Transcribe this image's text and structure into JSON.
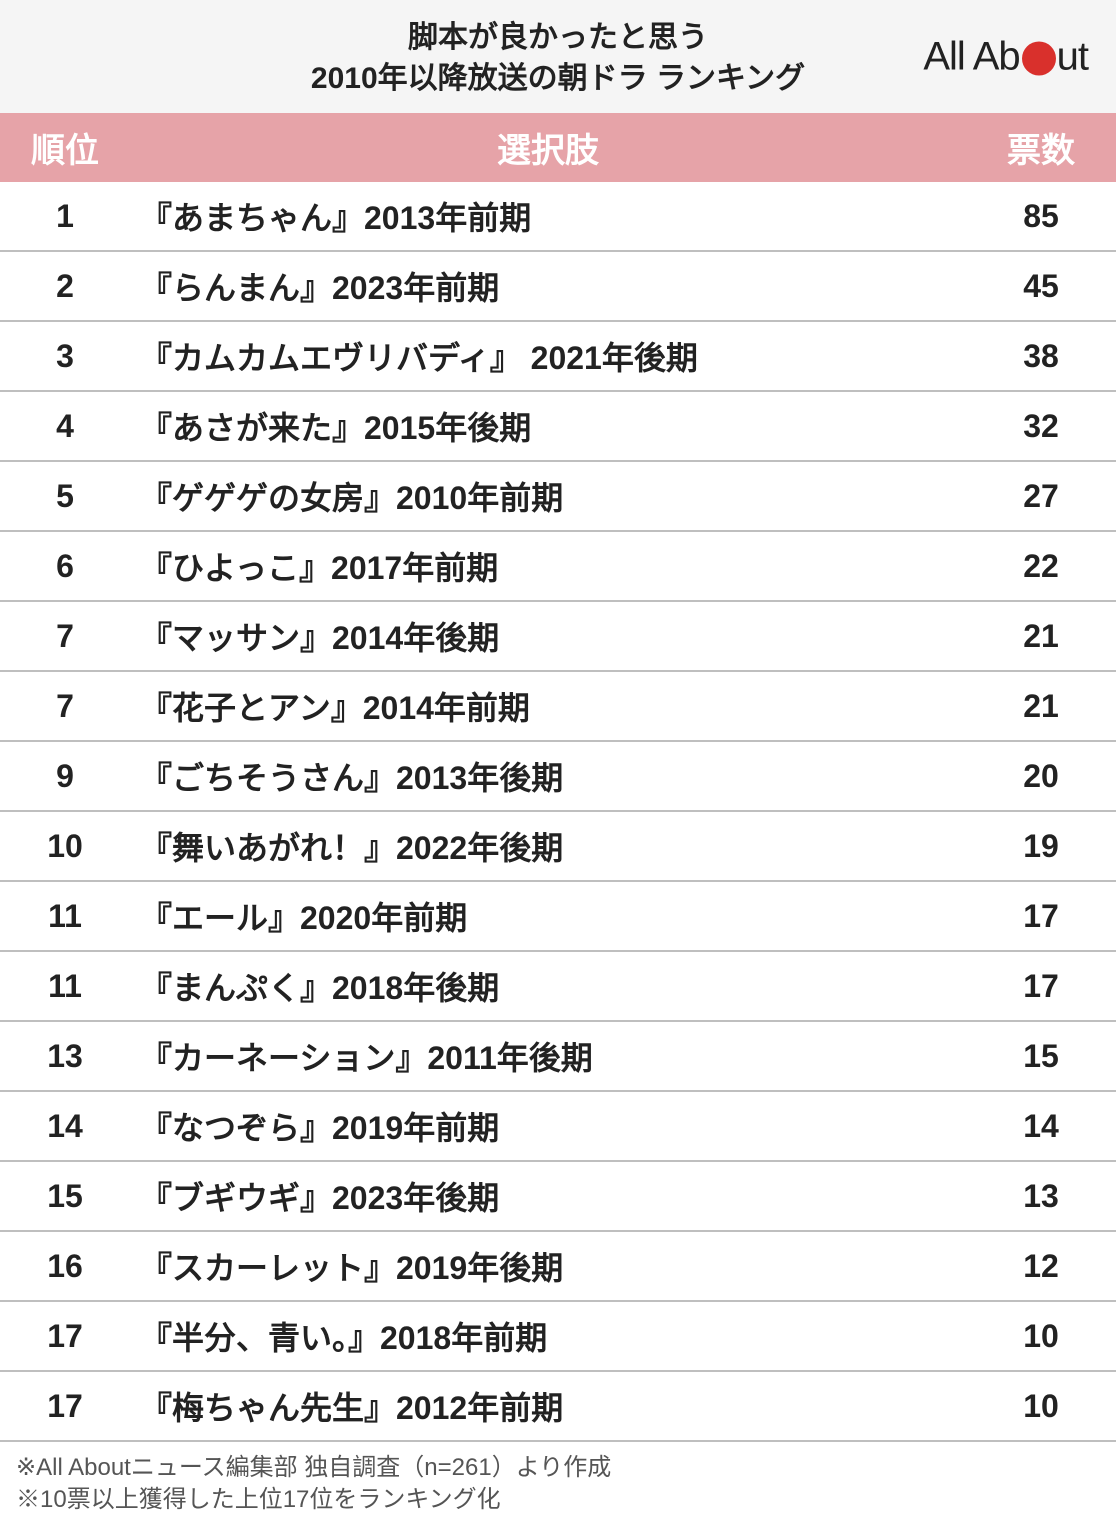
{
  "colors": {
    "header_bg": "#f5f5f5",
    "col_header_bg": "#e6a3a8",
    "col_header_text": "#ffffff",
    "row_border": "#bfbfbf",
    "text": "#222222",
    "footnote_text": "#555555",
    "logo_dot": "#d9302c",
    "page_bg": "#ffffff"
  },
  "logo": {
    "part1": "All Ab",
    "part2": "ut"
  },
  "title": {
    "line1": "脚本が良かったと思う",
    "line2": "2010年以降放送の朝ドラ ランキング"
  },
  "columns": {
    "rank": "順位",
    "choice": "選択肢",
    "votes": "票数"
  },
  "rows": [
    {
      "rank": "1",
      "choice": "『あまちゃん』2013年前期",
      "votes": "85"
    },
    {
      "rank": "2",
      "choice": "『らんまん』2023年前期",
      "votes": "45"
    },
    {
      "rank": "3",
      "choice": "『カムカムエヴリバディ』 2021年後期",
      "votes": "38"
    },
    {
      "rank": "4",
      "choice": "『あさが来た』2015年後期",
      "votes": "32"
    },
    {
      "rank": "5",
      "choice": "『ゲゲゲの女房』2010年前期",
      "votes": "27"
    },
    {
      "rank": "6",
      "choice": "『ひよっこ』2017年前期",
      "votes": "22"
    },
    {
      "rank": "7",
      "choice": "『マッサン』2014年後期",
      "votes": "21"
    },
    {
      "rank": "7",
      "choice": "『花子とアン』2014年前期",
      "votes": "21"
    },
    {
      "rank": "9",
      "choice": "『ごちそうさん』2013年後期",
      "votes": "20"
    },
    {
      "rank": "10",
      "choice": "『舞いあがれ！』2022年後期",
      "votes": "19"
    },
    {
      "rank": "11",
      "choice": "『エール』2020年前期",
      "votes": "17"
    },
    {
      "rank": "11",
      "choice": "『まんぷく』2018年後期",
      "votes": "17"
    },
    {
      "rank": "13",
      "choice": "『カーネーション』2011年後期",
      "votes": "15"
    },
    {
      "rank": "14",
      "choice": "『なつぞら』2019年前期",
      "votes": "14"
    },
    {
      "rank": "15",
      "choice": "『ブギウギ』2023年後期",
      "votes": "13"
    },
    {
      "rank": "16",
      "choice": "『スカーレット』2019年後期",
      "votes": "12"
    },
    {
      "rank": "17",
      "choice": "『半分、青い。』2018年前期",
      "votes": "10"
    },
    {
      "rank": "17",
      "choice": "『梅ちゃん先生』2012年前期",
      "votes": "10"
    }
  ],
  "footnotes": {
    "line1": "※All Aboutニュース編集部 独自調査（n=261）より作成",
    "line2": "※10票以上獲得した上位17位をランキング化"
  }
}
